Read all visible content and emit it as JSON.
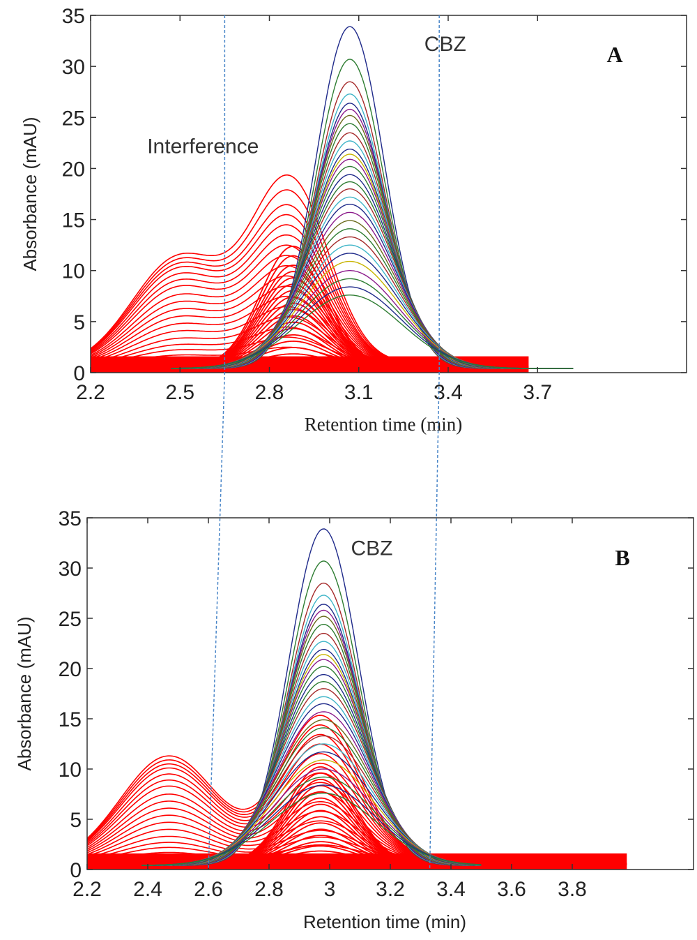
{
  "chart_data": [
    {
      "type": "line",
      "panel_label": "A",
      "xlabel": "Retention time (min)",
      "ylabel": "Absorbance (mAU)",
      "xlim": [
        2.2,
        4.2
      ],
      "ylim": [
        0,
        35
      ],
      "xticks": [
        "2.2",
        "2.5",
        "2.8",
        "3.1",
        "3.4",
        "3.7"
      ],
      "yticks": [
        "0",
        "5",
        "10",
        "15",
        "20",
        "25",
        "30",
        "35"
      ],
      "annotations": [
        {
          "text": "CBZ",
          "x": 3.32,
          "y": 31.5
        },
        {
          "text": "Interference",
          "x": 2.39,
          "y": 21.5
        }
      ],
      "vlines": [
        2.65,
        3.37
      ],
      "cbz_peak": {
        "center": 3.07,
        "heights": [
          33.5,
          30.3,
          28.1,
          26.9,
          26.0,
          25.4,
          24.8,
          24.0,
          23.1,
          22.3,
          21.5,
          21.0,
          20.5,
          19.8,
          19.0,
          18.3,
          17.6,
          16.8,
          16.1,
          15.3,
          14.5,
          13.7,
          12.9,
          12.1,
          11.3,
          10.5,
          9.6,
          8.8,
          8.0,
          7.2
        ],
        "colors": [
          "#1f2a8a",
          "#2e7d32",
          "#a52a2a",
          "#3fb5c8",
          "#1f2a8a",
          "#8b1a8b",
          "#6a6a1a",
          "#2e7d32",
          "#a52a2a",
          "#3fb5c8",
          "#1f2a8a",
          "#c8b400",
          "#8b1a8b",
          "#2e7d32"
        ]
      },
      "interference_traces": {
        "heights": [
          19.0,
          17.5,
          16.0,
          15.0,
          14.0,
          13.0,
          12.0,
          11.0,
          10.0,
          9.0,
          8.0,
          7.0,
          6.0,
          5.0,
          4.0,
          3.0,
          2.0
        ],
        "base_heights": [
          10.8,
          10.4,
          10.0,
          9.6,
          9.0,
          8.4,
          7.8,
          7.0,
          6.3,
          5.6,
          4.9,
          4.2,
          3.5,
          2.8,
          2.2,
          1.7,
          1.2
        ],
        "color": "#ff0000"
      }
    },
    {
      "type": "line",
      "panel_label": "B",
      "xlabel": "Retention time (min)",
      "ylabel": "Absorbance (mAU)",
      "xlim": [
        2.2,
        4.2
      ],
      "ylim": [
        0,
        35
      ],
      "xticks": [
        "2.2",
        "2.4",
        "2.6",
        "2.8",
        "3",
        "3.2",
        "3.4",
        "3.6",
        "3.8"
      ],
      "yticks": [
        "0",
        "5",
        "10",
        "15",
        "20",
        "25",
        "30",
        "35"
      ],
      "annotations": [
        {
          "text": "CBZ",
          "x": 3.07,
          "y": 31.3
        }
      ],
      "vlines": [
        2.6,
        3.33
      ],
      "cbz_peak": {
        "center": 2.98,
        "heights": [
          33.5,
          30.3,
          28.1,
          26.9,
          26.0,
          25.4,
          24.8,
          24.0,
          23.1,
          22.3,
          21.5,
          21.0,
          20.5,
          19.8,
          19.0,
          18.3,
          17.6,
          16.8,
          16.1,
          15.3,
          14.5,
          13.7,
          12.9,
          12.1,
          11.3,
          10.5,
          9.6,
          8.8,
          8.0,
          7.2
        ],
        "colors": [
          "#1f2a8a",
          "#2e7d32",
          "#a52a2a",
          "#3fb5c8",
          "#1f2a8a",
          "#8b1a8b",
          "#6a6a1a",
          "#2e7d32",
          "#a52a2a",
          "#3fb5c8",
          "#1f2a8a",
          "#c8b400",
          "#8b1a8b",
          "#2e7d32"
        ]
      },
      "interference_traces": {
        "heights": [
          15.5,
          14.5,
          13.5,
          12.5,
          11.5,
          10.5,
          9.5,
          8.5,
          7.5,
          6.5,
          5.5,
          4.5,
          3.5,
          2.8,
          2.0
        ],
        "base_heights": [
          10.8,
          10.4,
          10.0,
          9.6,
          9.0,
          8.4,
          7.8,
          7.0,
          6.3,
          5.6,
          4.9,
          4.2,
          3.5,
          2.8,
          2.2,
          1.7,
          1.2
        ],
        "color": "#ff0000"
      }
    }
  ],
  "colors": {
    "vline": "#4a86c8",
    "axis": "#333333"
  }
}
